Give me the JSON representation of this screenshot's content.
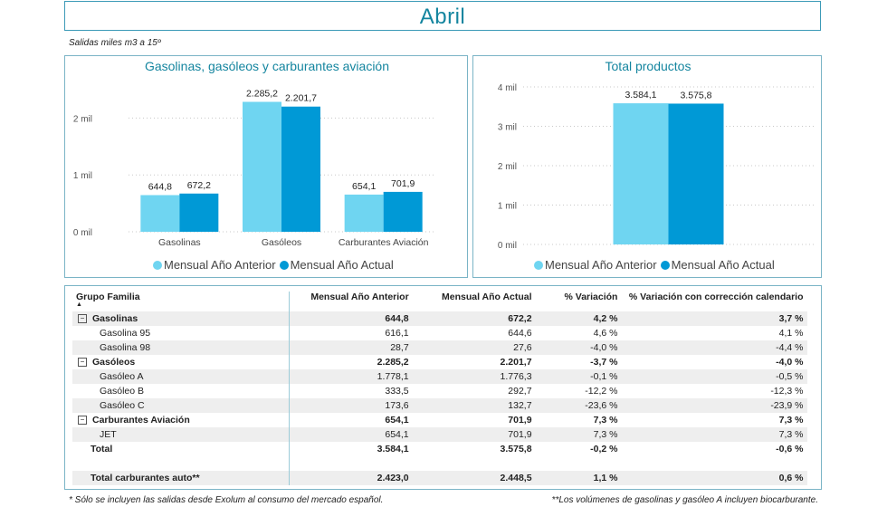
{
  "header": {
    "title": "Abril",
    "subtitle": "Salidas miles m3 a 15º"
  },
  "colors": {
    "anterior": "#6fd5f1",
    "actual": "#0099d6",
    "accent": "#14859f"
  },
  "chart_data": [
    {
      "type": "bar",
      "title": "Gasolinas, gasóleos y carburantes aviación",
      "categories": [
        "Gasolinas",
        "Gasóleos",
        "Carburantes Aviación"
      ],
      "series": [
        {
          "name": "Mensual Año Anterior",
          "values": [
            644.8,
            2285.2,
            654.1
          ],
          "labels": [
            "644,8",
            "2.285,2",
            "654,1"
          ]
        },
        {
          "name": "Mensual Año Actual",
          "values": [
            672.2,
            2201.7,
            701.9
          ],
          "labels": [
            "672,2",
            "2.201,7",
            "701,9"
          ]
        }
      ],
      "ylim": [
        0,
        2500
      ],
      "yticks": [
        0,
        1000,
        2000
      ],
      "ytick_labels": [
        "0 mil",
        "1 mil",
        "2 mil"
      ],
      "grid": true,
      "legend": "bottom"
    },
    {
      "type": "bar",
      "title": "Total productos",
      "categories": [
        ""
      ],
      "series": [
        {
          "name": "Mensual Año Anterior",
          "values": [
            3584.1
          ],
          "labels": [
            "3.584,1"
          ]
        },
        {
          "name": "Mensual Año Actual",
          "values": [
            3575.8
          ],
          "labels": [
            "3.575,8"
          ]
        }
      ],
      "ylim": [
        0,
        4000
      ],
      "yticks": [
        0,
        1000,
        2000,
        3000,
        4000
      ],
      "ytick_labels": [
        "0 mil",
        "1 mil",
        "2 mil",
        "3 mil",
        "4 mil"
      ],
      "grid": true,
      "legend": "bottom"
    }
  ],
  "table": {
    "headers": [
      "Grupo Familia",
      "Mensual Año Anterior",
      "Mensual Año Actual",
      "% Variación",
      "% Variación con corrección calendario"
    ],
    "rows": [
      {
        "name": "Gasolinas",
        "level": 0,
        "bold": true,
        "expander": "−",
        "values": [
          "644,8",
          "672,2",
          "4,2 %",
          "3,7 %"
        ]
      },
      {
        "name": "Gasolina 95",
        "level": 1,
        "values": [
          "616,1",
          "644,6",
          "4,6 %",
          "4,1 %"
        ]
      },
      {
        "name": "Gasolina 98",
        "level": 1,
        "values": [
          "28,7",
          "27,6",
          "-4,0 %",
          "-4,4 %"
        ]
      },
      {
        "name": "Gasóleos",
        "level": 0,
        "bold": true,
        "expander": "−",
        "values": [
          "2.285,2",
          "2.201,7",
          "-3,7 %",
          "-4,0 %"
        ]
      },
      {
        "name": "Gasóleo A",
        "level": 1,
        "values": [
          "1.778,1",
          "1.776,3",
          "-0,1 %",
          "-0,5 %"
        ]
      },
      {
        "name": "Gasóleo B",
        "level": 1,
        "values": [
          "333,5",
          "292,7",
          "-12,2 %",
          "-12,3 %"
        ]
      },
      {
        "name": "Gasóleo C",
        "level": 1,
        "values": [
          "173,6",
          "132,7",
          "-23,6 %",
          "-23,9 %"
        ]
      },
      {
        "name": "Carburantes Aviación",
        "level": 0,
        "bold": true,
        "expander": "−",
        "values": [
          "654,1",
          "701,9",
          "7,3 %",
          "7,3 %"
        ]
      },
      {
        "name": "JET",
        "level": 1,
        "values": [
          "654,1",
          "701,9",
          "7,3 %",
          "7,3 %"
        ]
      },
      {
        "name": "Total",
        "level": 0,
        "bold": true,
        "values": [
          "3.584,1",
          "3.575,8",
          "-0,2 %",
          "-0,6 %"
        ]
      }
    ],
    "total_auto": {
      "name": "Total carburantes auto**",
      "values": [
        "2.423,0",
        "2.448,5",
        "1,1 %",
        "0,6 %"
      ]
    }
  },
  "footnotes": {
    "left": "* Sólo se incluyen las salidas desde Exolum al consumo del mercado español.",
    "right": "**Los volúmenes de gasolinas y gasóleo A incluyen biocarburante."
  }
}
